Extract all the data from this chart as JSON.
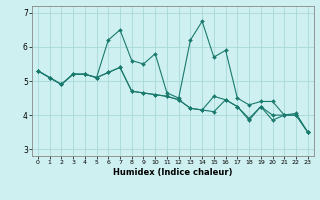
{
  "title": "",
  "xlabel": "Humidex (Indice chaleur)",
  "background_color": "#cff0f0",
  "grid_color": "#a8d8d8",
  "line_color": "#1a7a6e",
  "xlim": [
    -0.5,
    23.5
  ],
  "ylim": [
    2.8,
    7.2
  ],
  "yticks": [
    3,
    4,
    5,
    6,
    7
  ],
  "xticks": [
    0,
    1,
    2,
    3,
    4,
    5,
    6,
    7,
    8,
    9,
    10,
    11,
    12,
    13,
    14,
    15,
    16,
    17,
    18,
    19,
    20,
    21,
    22,
    23
  ],
  "series": [
    [
      5.3,
      5.1,
      4.9,
      5.2,
      5.2,
      5.1,
      5.25,
      5.4,
      4.7,
      4.65,
      4.6,
      4.55,
      4.45,
      4.2,
      4.15,
      4.1,
      4.45,
      4.25,
      3.9,
      4.25,
      4.0,
      4.0,
      4.0,
      3.5
    ],
    [
      5.3,
      5.1,
      4.9,
      5.2,
      5.2,
      5.1,
      6.2,
      6.5,
      5.6,
      5.5,
      5.8,
      4.65,
      4.5,
      6.2,
      6.75,
      5.7,
      5.9,
      4.5,
      4.3,
      4.4,
      4.4,
      4.0,
      4.05,
      3.5
    ],
    [
      5.3,
      5.1,
      4.9,
      5.2,
      5.2,
      5.1,
      5.25,
      5.4,
      4.7,
      4.65,
      4.6,
      4.55,
      4.45,
      4.2,
      4.15,
      4.55,
      4.45,
      4.25,
      3.85,
      4.25,
      3.85,
      4.0,
      4.0,
      3.5
    ]
  ],
  "figwidth": 3.2,
  "figheight": 2.0,
  "dpi": 100
}
